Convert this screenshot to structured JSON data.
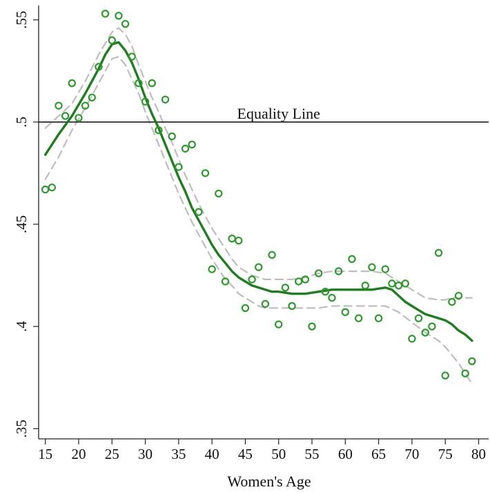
{
  "chart_data": {
    "type": "scatter",
    "xlabel": "Women's Age",
    "ylabel": "",
    "title": "",
    "xlim": [
      14,
      81.5
    ],
    "ylim": [
      0.345,
      0.557
    ],
    "xticks": [
      15,
      20,
      25,
      30,
      35,
      40,
      45,
      50,
      55,
      60,
      65,
      70,
      75,
      80
    ],
    "xtick_labels": [
      "15",
      "20",
      "25",
      "30",
      "35",
      "40",
      "45",
      "50",
      "55",
      "60",
      "65",
      "70",
      "75",
      "80"
    ],
    "yticks": [
      0.35,
      0.4,
      0.45,
      0.5,
      0.55
    ],
    "ytick_labels": [
      ".35",
      ".4",
      ".45",
      ".5",
      ".55"
    ],
    "grid": false,
    "reference_line": {
      "y": 0.5,
      "label": "Equality Line",
      "color": "#1a1a1a"
    },
    "colors": {
      "points": "#2e9a2e",
      "fit": "#1e7d1e",
      "ci": "#bdbdbd"
    },
    "series": [
      {
        "kind": "points",
        "x": [
          15,
          16,
          17,
          18,
          19,
          20,
          21,
          22,
          23,
          24,
          25,
          26,
          27,
          28,
          29,
          30,
          31,
          32,
          33,
          34,
          35,
          36,
          37,
          38,
          39,
          40,
          41,
          42,
          43,
          44,
          45,
          46,
          47,
          48,
          49,
          50,
          51,
          52,
          53,
          54,
          55,
          56,
          57,
          58,
          59,
          60,
          61,
          62,
          63,
          64,
          65,
          66,
          67,
          68,
          69,
          70,
          71,
          72,
          73,
          74,
          75,
          76,
          77,
          78,
          79
        ],
        "y": [
          0.467,
          0.468,
          0.508,
          0.503,
          0.519,
          0.502,
          0.508,
          0.512,
          0.527,
          0.553,
          0.54,
          0.552,
          0.548,
          0.532,
          0.519,
          0.51,
          0.519,
          0.496,
          0.511,
          0.493,
          0.478,
          0.487,
          0.489,
          0.456,
          0.475,
          0.428,
          0.465,
          0.422,
          0.443,
          0.442,
          0.409,
          0.423,
          0.429,
          0.411,
          0.435,
          0.401,
          0.419,
          0.41,
          0.422,
          0.423,
          0.4,
          0.426,
          0.417,
          0.414,
          0.427,
          0.407,
          0.433,
          0.404,
          0.42,
          0.429,
          0.404,
          0.428,
          0.421,
          0.42,
          0.421,
          0.394,
          0.404,
          0.397,
          0.4,
          0.436,
          0.376,
          0.412,
          0.415,
          0.377,
          0.383
        ]
      },
      {
        "kind": "fit",
        "x": [
          15,
          17,
          19,
          21,
          23,
          24,
          25,
          26,
          27,
          28,
          29,
          30,
          31,
          32,
          33,
          34,
          35,
          36,
          37,
          38,
          39,
          40,
          41,
          42,
          43,
          44,
          45,
          46,
          47,
          48,
          49,
          50,
          52,
          54,
          56,
          58,
          60,
          62,
          64,
          66,
          67,
          68,
          69,
          70,
          71,
          72,
          73,
          74,
          75,
          76,
          77,
          78,
          79
        ],
        "y": [
          0.484,
          0.494,
          0.503,
          0.514,
          0.526,
          0.533,
          0.538,
          0.539,
          0.535,
          0.529,
          0.521,
          0.512,
          0.504,
          0.497,
          0.489,
          0.481,
          0.473,
          0.466,
          0.458,
          0.452,
          0.446,
          0.44,
          0.435,
          0.431,
          0.427,
          0.424,
          0.422,
          0.42,
          0.419,
          0.418,
          0.417,
          0.417,
          0.416,
          0.416,
          0.417,
          0.418,
          0.418,
          0.418,
          0.418,
          0.419,
          0.418,
          0.415,
          0.412,
          0.41,
          0.408,
          0.406,
          0.405,
          0.404,
          0.403,
          0.401,
          0.398,
          0.396,
          0.393
        ]
      },
      {
        "kind": "ci_upper",
        "x": [
          15,
          17,
          19,
          21,
          23,
          25,
          26,
          27,
          28,
          29,
          30,
          31,
          32,
          33,
          34,
          35,
          36,
          37,
          38,
          39,
          40,
          41,
          42,
          43,
          44,
          45,
          46,
          47,
          48,
          50,
          52,
          54,
          56,
          58,
          60,
          62,
          64,
          66,
          68,
          70,
          72,
          74,
          75,
          76,
          77,
          78,
          79
        ],
        "y": [
          0.497,
          0.503,
          0.509,
          0.52,
          0.533,
          0.544,
          0.546,
          0.543,
          0.537,
          0.528,
          0.52,
          0.512,
          0.505,
          0.497,
          0.49,
          0.482,
          0.474,
          0.467,
          0.46,
          0.454,
          0.448,
          0.443,
          0.438,
          0.433,
          0.429,
          0.427,
          0.425,
          0.424,
          0.423,
          0.423,
          0.423,
          0.424,
          0.426,
          0.427,
          0.427,
          0.427,
          0.427,
          0.426,
          0.422,
          0.418,
          0.414,
          0.413,
          0.413,
          0.414,
          0.414,
          0.414,
          0.414
        ]
      },
      {
        "kind": "ci_lower",
        "x": [
          15,
          17,
          19,
          21,
          23,
          25,
          26,
          27,
          28,
          29,
          30,
          31,
          32,
          33,
          34,
          35,
          36,
          37,
          38,
          39,
          40,
          41,
          42,
          43,
          44,
          45,
          46,
          47,
          48,
          50,
          52,
          54,
          56,
          58,
          60,
          62,
          64,
          66,
          68,
          70,
          72,
          74,
          75,
          76,
          77,
          78,
          79
        ],
        "y": [
          0.472,
          0.483,
          0.496,
          0.507,
          0.519,
          0.531,
          0.532,
          0.528,
          0.521,
          0.514,
          0.505,
          0.497,
          0.489,
          0.481,
          0.473,
          0.465,
          0.458,
          0.451,
          0.445,
          0.439,
          0.433,
          0.428,
          0.423,
          0.42,
          0.416,
          0.414,
          0.412,
          0.41,
          0.409,
          0.409,
          0.409,
          0.409,
          0.409,
          0.41,
          0.41,
          0.41,
          0.41,
          0.41,
          0.407,
          0.402,
          0.397,
          0.393,
          0.39,
          0.386,
          0.382,
          0.377,
          0.372
        ]
      }
    ]
  }
}
